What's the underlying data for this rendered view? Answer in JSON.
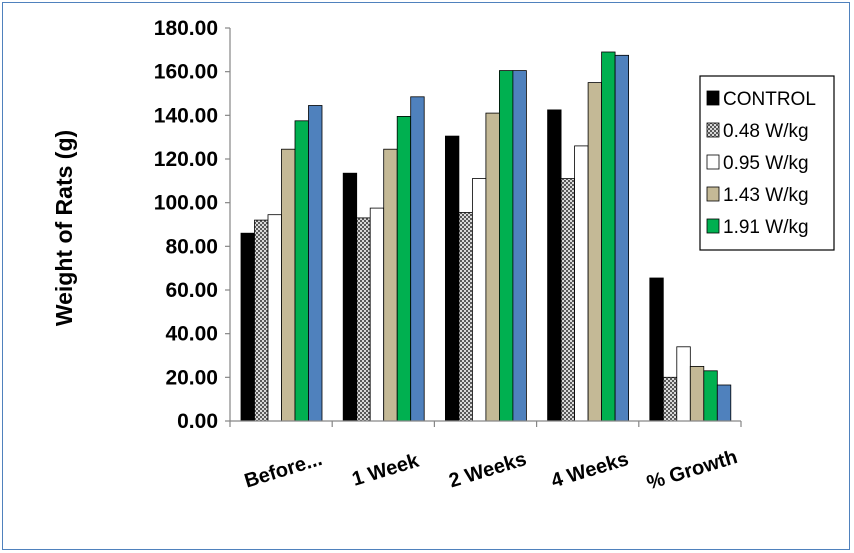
{
  "colors": {
    "frame_border": "#4f81bd",
    "axis": "#868686",
    "legend_border": "#000000"
  },
  "chart_data": {
    "type": "bar",
    "ylabel": "Weight of Rats (g)",
    "xlabel": "",
    "ylim": [
      0,
      180
    ],
    "yticks": [
      0,
      20,
      40,
      60,
      80,
      100,
      120,
      140,
      160,
      180
    ],
    "ytick_labels": [
      "0.00",
      "20.00",
      "40.00",
      "60.00",
      "80.00",
      "100.00",
      "120.00",
      "140.00",
      "160.00",
      "180.00"
    ],
    "categories": [
      "Before...",
      "1 Week",
      "2 Weeks",
      "4 Weeks",
      "% Growth"
    ],
    "grid": false,
    "legend_position": "right",
    "series": [
      {
        "name": "CONTROL",
        "color": "#000000",
        "pattern": "solid",
        "values": [
          86,
          113.5,
          130.5,
          142.5,
          65.5
        ]
      },
      {
        "name": "0.48 W/kg",
        "color": "#a6a6a6",
        "pattern": "checker",
        "values": [
          92,
          93,
          95.5,
          111,
          20
        ]
      },
      {
        "name": "0.95 W/kg",
        "color": "#ffffff",
        "pattern": "solid",
        "values": [
          94.5,
          97.5,
          111,
          126,
          34
        ]
      },
      {
        "name": "1.43 W/kg",
        "color": "#c4b996",
        "pattern": "solid",
        "values": [
          124.5,
          124.5,
          141,
          155,
          25
        ]
      },
      {
        "name": "1.91 W/kg",
        "color": "#00b050",
        "pattern": "solid",
        "values": [
          137.5,
          139.5,
          160.5,
          169,
          23
        ]
      },
      {
        "values": [
          144.5,
          148.5,
          160.5,
          167.5,
          16.5
        ],
        "color": "#4f81bd",
        "pattern": "solid"
      }
    ]
  }
}
